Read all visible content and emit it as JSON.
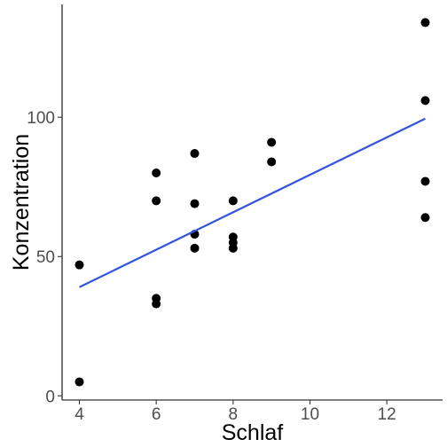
{
  "chart_data": {
    "type": "scatter",
    "title": "",
    "xlabel": "Schlaf",
    "ylabel": "Konzentration",
    "xlim": [
      3.55,
      13.45
    ],
    "ylim": [
      -1.5,
      140.5
    ],
    "x_ticks": [
      4,
      6,
      8,
      10,
      12
    ],
    "y_ticks": [
      0,
      50,
      100
    ],
    "grid": false,
    "legend": "none",
    "point_color": "#000000",
    "line_color": "#3355dd",
    "points": [
      {
        "x": 4,
        "y": 47
      },
      {
        "x": 4,
        "y": 5
      },
      {
        "x": 6,
        "y": 80
      },
      {
        "x": 6,
        "y": 70
      },
      {
        "x": 6,
        "y": 35
      },
      {
        "x": 6,
        "y": 33
      },
      {
        "x": 7,
        "y": 87
      },
      {
        "x": 7,
        "y": 69
      },
      {
        "x": 7,
        "y": 58
      },
      {
        "x": 7,
        "y": 53
      },
      {
        "x": 8,
        "y": 70
      },
      {
        "x": 8,
        "y": 57
      },
      {
        "x": 8,
        "y": 55
      },
      {
        "x": 8,
        "y": 53
      },
      {
        "x": 9,
        "y": 91
      },
      {
        "x": 9,
        "y": 84
      },
      {
        "x": 13,
        "y": 134
      },
      {
        "x": 13,
        "y": 106
      },
      {
        "x": 13,
        "y": 77
      },
      {
        "x": 13,
        "y": 64
      }
    ],
    "trend_line": {
      "x": [
        4,
        13
      ],
      "y": [
        39,
        99.5
      ]
    }
  }
}
